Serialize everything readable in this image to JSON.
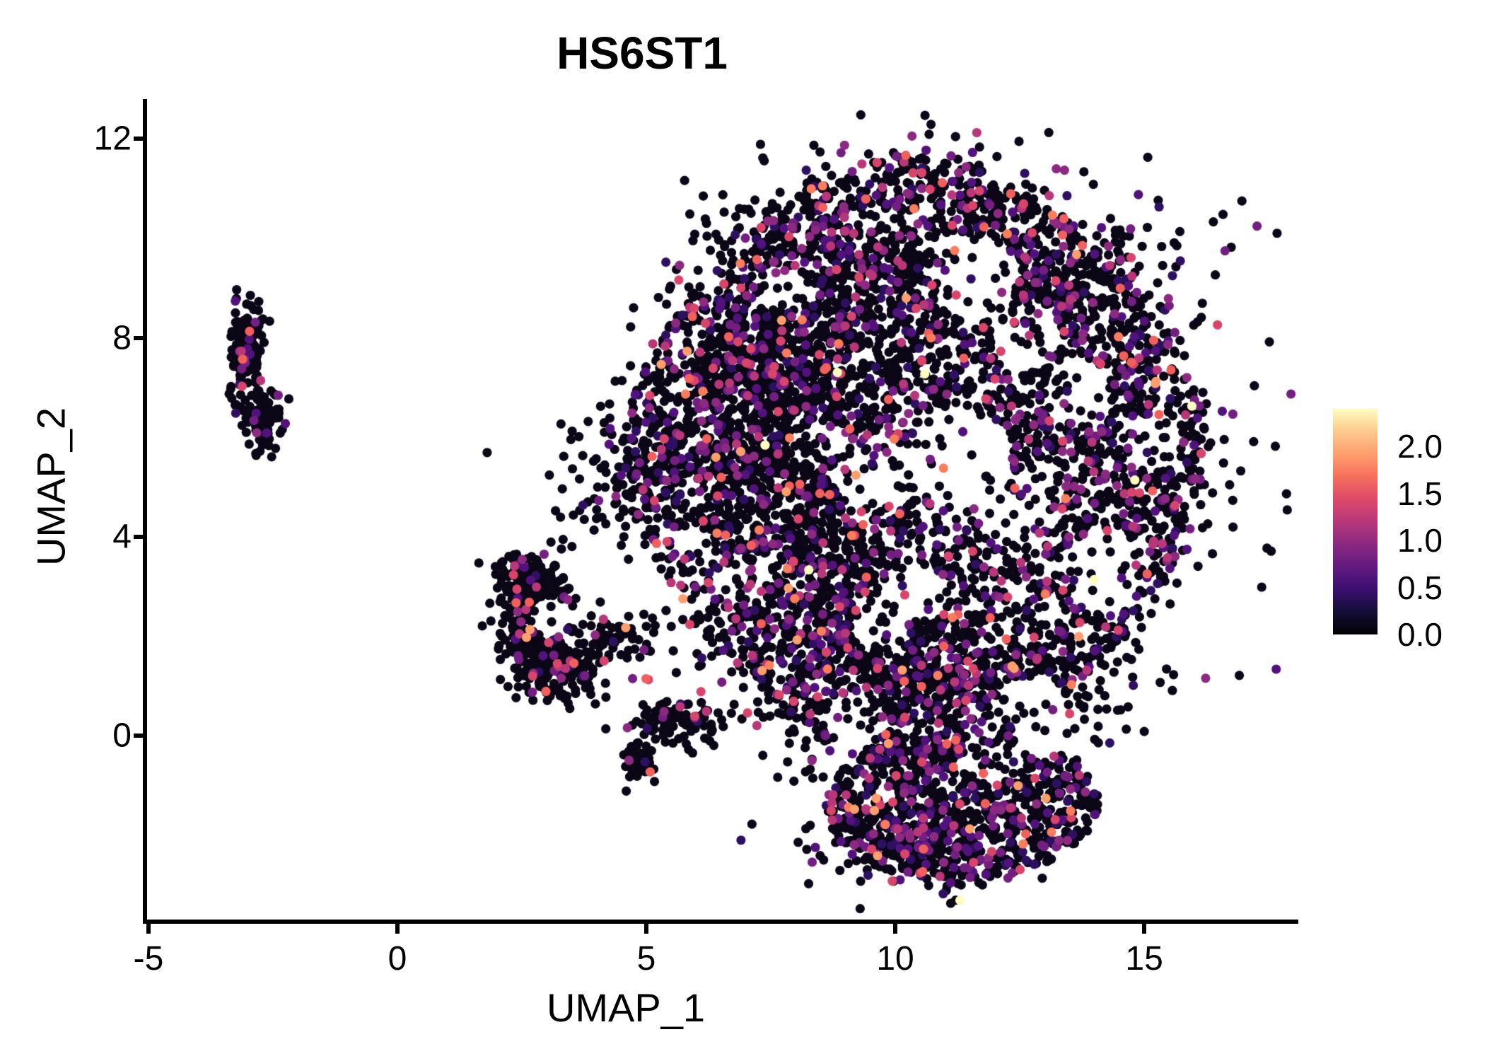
{
  "chart_data": {
    "type": "scatter",
    "title": "HS6ST1",
    "xlabel": "UMAP_1",
    "ylabel": "UMAP_2",
    "xlim": [
      -5.07,
      18.01
    ],
    "ylim": [
      -3.74,
      12.8
    ],
    "grid": false,
    "x_axis": {
      "ticks": [
        {
          "v": -5,
          "label": "-5"
        },
        {
          "v": 0,
          "label": "0"
        },
        {
          "v": 5,
          "label": "5"
        },
        {
          "v": 10,
          "label": "10"
        },
        {
          "v": 15,
          "label": "15"
        }
      ]
    },
    "y_axis": {
      "ticks": [
        {
          "v": 0,
          "label": "0"
        },
        {
          "v": 4,
          "label": "4"
        },
        {
          "v": 8,
          "label": "8"
        },
        {
          "v": 12,
          "label": "12"
        }
      ]
    },
    "colorbar": {
      "position": "right",
      "domain": [
        0.0,
        2.4
      ],
      "ticks": [
        {
          "v": 0.0,
          "label": "0.0"
        },
        {
          "v": 0.5,
          "label": "0.5"
        },
        {
          "v": 1.0,
          "label": "1.0"
        },
        {
          "v": 1.5,
          "label": "1.5"
        },
        {
          "v": 2.0,
          "label": "2.0"
        }
      ],
      "gradient": [
        {
          "at": 0.0,
          "color": "#000004"
        },
        {
          "at": 0.1,
          "color": "#140e36"
        },
        {
          "at": 0.2,
          "color": "#3b0f70"
        },
        {
          "at": 0.3,
          "color": "#641a80"
        },
        {
          "at": 0.4,
          "color": "#8c2981"
        },
        {
          "at": 0.5,
          "color": "#b73779"
        },
        {
          "at": 0.6,
          "color": "#de4968"
        },
        {
          "at": 0.7,
          "color": "#f7705c"
        },
        {
          "at": 0.8,
          "color": "#fe9f6d"
        },
        {
          "at": 0.9,
          "color": "#fec98d"
        },
        {
          "at": 1.0,
          "color": "#fcfdbf"
        }
      ]
    },
    "point_radius_px": 6.6,
    "seed": 42,
    "palette_main": [
      {
        "color": "#0b0716",
        "value": 0.0,
        "weight": 0.76
      },
      {
        "color": "#2d1160",
        "value": 0.4,
        "weight": 0.055
      },
      {
        "color": "#51127c",
        "value": 0.6,
        "weight": 0.05
      },
      {
        "color": "#721f81",
        "value": 0.8,
        "weight": 0.045
      },
      {
        "color": "#8c2981",
        "value": 0.95,
        "weight": 0.035
      },
      {
        "color": "#b73779",
        "value": 1.1,
        "weight": 0.023
      },
      {
        "color": "#d8456c",
        "value": 1.3,
        "weight": 0.014
      },
      {
        "color": "#f1605d",
        "value": 1.5,
        "weight": 0.009
      },
      {
        "color": "#fa7d5e",
        "value": 1.65,
        "weight": 0.005
      },
      {
        "color": "#fe9f6d",
        "value": 1.85,
        "weight": 0.003
      },
      {
        "color": "#fcfdbf",
        "value": 2.3,
        "weight": 0.001
      }
    ],
    "palette_dark": [
      {
        "color": "#0b0716",
        "value": 0.0,
        "weight": 0.885
      },
      {
        "color": "#2d1160",
        "value": 0.4,
        "weight": 0.02
      },
      {
        "color": "#51127c",
        "value": 0.6,
        "weight": 0.022
      },
      {
        "color": "#721f81",
        "value": 0.8,
        "weight": 0.02
      },
      {
        "color": "#8c2981",
        "value": 0.95,
        "weight": 0.018
      },
      {
        "color": "#b73779",
        "value": 1.1,
        "weight": 0.012
      },
      {
        "color": "#d8456c",
        "value": 1.3,
        "weight": 0.008
      },
      {
        "color": "#f1605d",
        "value": 1.5,
        "weight": 0.01
      },
      {
        "color": "#fe9f6d",
        "value": 1.85,
        "weight": 0.004
      },
      {
        "color": "#fcfdbf",
        "value": 2.3,
        "weight": 0.001
      }
    ],
    "clusters": [
      {
        "name": "main-core",
        "shape": "superellipse",
        "p": 1.6,
        "n": 3400,
        "cx": 10.4,
        "cy": 5.6,
        "rx": 5.95,
        "ry": 6.2,
        "palette": "main",
        "holes": true
      },
      {
        "name": "main-top-band",
        "shape": "gauss",
        "n": 620,
        "cx": 10.2,
        "cy": 9.6,
        "sx": 1.9,
        "sy": 1.05,
        "palette": "main",
        "holes": true
      },
      {
        "name": "main-left-wedge",
        "shape": "gauss",
        "n": 850,
        "cx": 7.35,
        "cy": 6.9,
        "sx": 1.05,
        "sy": 1.45,
        "palette": "dark",
        "holes": true
      },
      {
        "name": "main-mid-band",
        "shape": "gauss",
        "n": 640,
        "cx": 8.6,
        "cy": 3.8,
        "sx": 1.0,
        "sy": 1.8,
        "palette": "main",
        "holes": true
      },
      {
        "name": "main-right-mid",
        "shape": "gauss",
        "n": 430,
        "cx": 13.8,
        "cy": 5.3,
        "sx": 1.5,
        "sy": 1.6,
        "palette": "main",
        "holes": true
      },
      {
        "name": "main-bottom-band",
        "shape": "gauss",
        "n": 580,
        "cx": 10.9,
        "cy": 1.0,
        "sx": 2.2,
        "sy": 0.85,
        "palette": "main",
        "holes": true
      },
      {
        "name": "main-upper-right",
        "shape": "gauss",
        "n": 340,
        "cx": 13.2,
        "cy": 8.9,
        "sx": 1.35,
        "sy": 0.95,
        "palette": "main",
        "holes": true
      },
      {
        "name": "bottom-lobe",
        "shape": "ellipse",
        "n": 800,
        "cx": 11.35,
        "cy": -1.4,
        "rx": 2.75,
        "ry": 1.5,
        "palette": "main",
        "holes": true
      },
      {
        "name": "bottom-lobe-rim",
        "shape": "gauss",
        "n": 230,
        "cx": 10.7,
        "cy": -2.2,
        "sx": 1.15,
        "sy": 0.5,
        "palette": "main",
        "holes": true
      },
      {
        "name": "left-sparse-bridge",
        "shape": "gauss",
        "n": 160,
        "cx": 4.95,
        "cy": 5.3,
        "sx": 0.85,
        "sy": 0.95,
        "palette": "dark",
        "holes": true
      },
      {
        "name": "mid-arc-top",
        "shape": "gauss",
        "n": 220,
        "cx": 2.62,
        "cy": 2.95,
        "sx": 0.38,
        "sy": 0.42,
        "palette": "dark",
        "holes": true
      },
      {
        "name": "mid-arc-band",
        "shape": "gauss",
        "n": 140,
        "cx": 2.68,
        "cy": 1.95,
        "sx": 0.3,
        "sy": 0.45,
        "palette": "dark",
        "holes": true
      },
      {
        "name": "mid-hook",
        "shape": "gauss",
        "n": 150,
        "cx": 3.3,
        "cy": 1.3,
        "sx": 0.45,
        "sy": 0.3,
        "palette": "dark",
        "holes": true
      },
      {
        "name": "mid-bridge",
        "shape": "gauss",
        "n": 80,
        "cx": 4.3,
        "cy": 1.95,
        "sx": 0.75,
        "sy": 0.3,
        "palette": "dark",
        "holes": true
      },
      {
        "name": "mid-tail",
        "shape": "gauss",
        "n": 90,
        "cx": 5.55,
        "cy": 0.3,
        "sx": 0.5,
        "sy": 0.22,
        "palette": "dark",
        "holes": true
      },
      {
        "name": "mid-cross-blob",
        "shape": "gauss",
        "n": 40,
        "cx": 4.82,
        "cy": -0.5,
        "sx": 0.2,
        "sy": 0.2,
        "palette": "dark",
        "holes": true
      },
      {
        "name": "left-upper",
        "shape": "gauss",
        "n": 150,
        "cx": -3.02,
        "cy": 7.75,
        "sx": 0.17,
        "sy": 0.55,
        "palette": "dark",
        "holes": false
      },
      {
        "name": "left-lower",
        "shape": "gauss",
        "n": 85,
        "cx": -2.68,
        "cy": 6.33,
        "sx": 0.2,
        "sy": 0.27,
        "palette": "dark",
        "holes": false
      }
    ],
    "sparse_holes": [
      {
        "cx": 11.6,
        "cy": 9.2,
        "r": 0.9,
        "keep": 0.15
      },
      {
        "cx": 12.6,
        "cy": 8.1,
        "r": 0.7,
        "keep": 0.3
      },
      {
        "cx": 11.3,
        "cy": 5.6,
        "r": 1.05,
        "keep": 0.18
      },
      {
        "cx": 12.4,
        "cy": 4.6,
        "r": 0.75,
        "keep": 0.3
      },
      {
        "cx": 14.3,
        "cy": 3.4,
        "r": 0.75,
        "keep": 0.3
      },
      {
        "cx": 9.7,
        "cy": 2.35,
        "r": 0.6,
        "keep": 0.3
      },
      {
        "cx": 10.4,
        "cy": 2.9,
        "r": 0.6,
        "keep": 0.35
      },
      {
        "cx": 9.6,
        "cy": 5.2,
        "r": 0.85,
        "keep": 0.22
      },
      {
        "cx": 8.4,
        "cy": 6.0,
        "r": 0.6,
        "keep": 0.3
      },
      {
        "cx": 7.9,
        "cy": 9.1,
        "r": 0.6,
        "keep": 0.35
      },
      {
        "cx": 13.6,
        "cy": 6.9,
        "r": 0.7,
        "keep": 0.35
      },
      {
        "cx": 12.7,
        "cy": 0.35,
        "r": 0.8,
        "keep": 0.25
      },
      {
        "cx": 9.2,
        "cy": 0.3,
        "r": 0.6,
        "keep": 0.35
      },
      {
        "cx": 15.1,
        "cy": 5.9,
        "r": 0.6,
        "keep": 0.4
      },
      {
        "cx": 10.9,
        "cy": 10.3,
        "r": 0.55,
        "keep": 0.4
      },
      {
        "cx": 11.9,
        "cy": -0.4,
        "r": 0.6,
        "keep": 0.3
      },
      {
        "cx": 3.05,
        "cy": 2.4,
        "r": 0.42,
        "keep": 0.15
      }
    ]
  }
}
